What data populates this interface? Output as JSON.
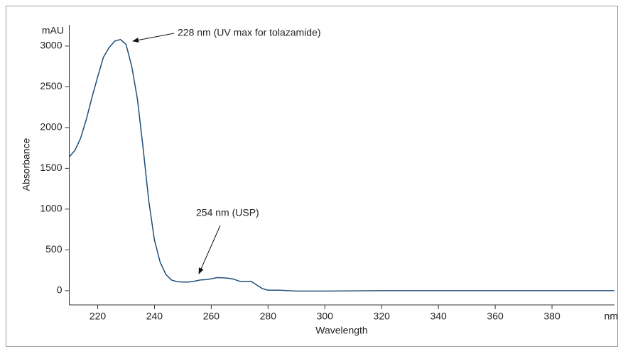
{
  "chart_data": {
    "type": "line",
    "x_label": "Wavelength",
    "y_label": "Absorbance",
    "x_unit": "nm",
    "y_unit": "mAU",
    "annotations": [
      "228 nm (UV max for tolazamide)",
      "254 nm (USP)"
    ],
    "x": [
      210,
      212,
      214,
      216,
      218,
      220,
      222,
      224,
      226,
      228,
      230,
      232,
      234,
      236,
      238,
      240,
      242,
      244,
      246,
      248,
      250,
      252,
      254,
      256,
      258,
      260,
      262,
      264,
      266,
      268,
      270,
      272,
      274,
      276,
      278,
      280,
      284,
      290,
      300,
      320,
      340,
      360,
      380,
      400,
      402
    ],
    "series": [
      {
        "color": "#1f4e79",
        "values": [
          1640,
          1720,
          1870,
          2100,
          2370,
          2620,
          2860,
          2980,
          3060,
          3080,
          3020,
          2750,
          2350,
          1750,
          1100,
          620,
          350,
          200,
          130,
          110,
          105,
          105,
          115,
          130,
          135,
          145,
          160,
          158,
          152,
          140,
          115,
          110,
          115,
          70,
          25,
          5,
          5,
          -5,
          -5,
          0,
          0,
          0,
          0,
          0,
          0
        ]
      }
    ],
    "xlim": [
      210,
      402
    ],
    "ylim": [
      -175,
      3260
    ],
    "xticks": [
      220,
      240,
      260,
      280,
      300,
      320,
      340,
      360,
      380
    ],
    "yticks": [
      0,
      500,
      1000,
      1500,
      2000,
      2500,
      3000
    ]
  }
}
